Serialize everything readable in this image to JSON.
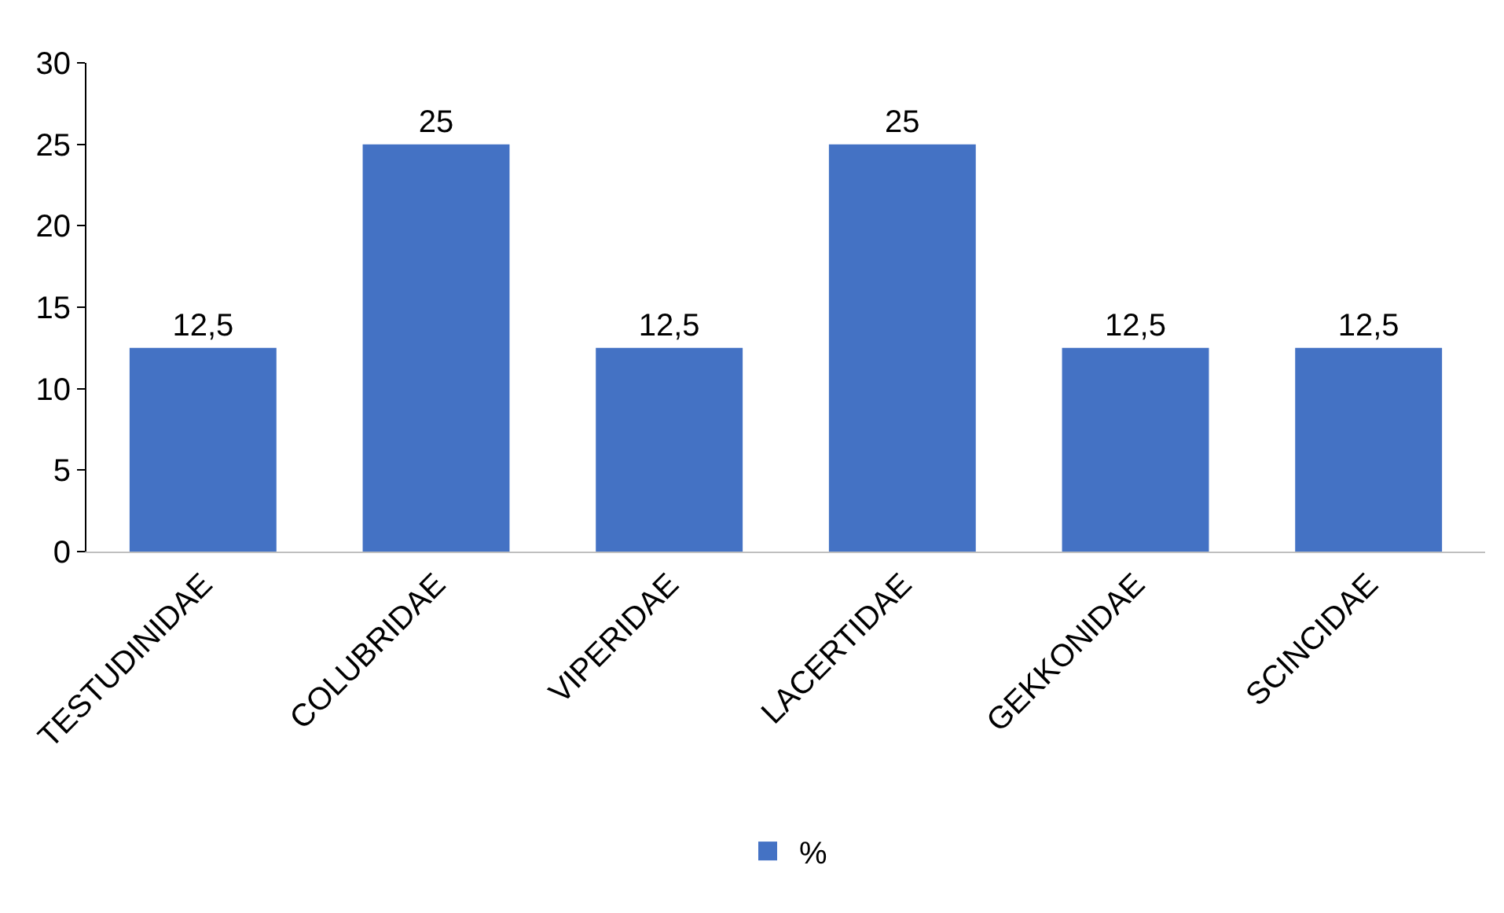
{
  "chart_data": {
    "type": "bar",
    "categories": [
      "TESTUDINIDAE",
      "COLUBRIDAE",
      "VIPERIDAE",
      "LACERTIDAE",
      "GEKKONIDAE",
      "SCINCIDAE"
    ],
    "series": [
      {
        "name": "%",
        "color": "#4472c4",
        "values": [
          12.5,
          25,
          12.5,
          25,
          12.5,
          12.5
        ],
        "value_labels": [
          "12,5",
          "25",
          "12,5",
          "25",
          "12,5",
          "12,5"
        ]
      }
    ],
    "ylim": [
      0,
      30
    ],
    "yticks": [
      0,
      5,
      10,
      15,
      20,
      25,
      30
    ],
    "grid": false,
    "legend": "bottom"
  }
}
